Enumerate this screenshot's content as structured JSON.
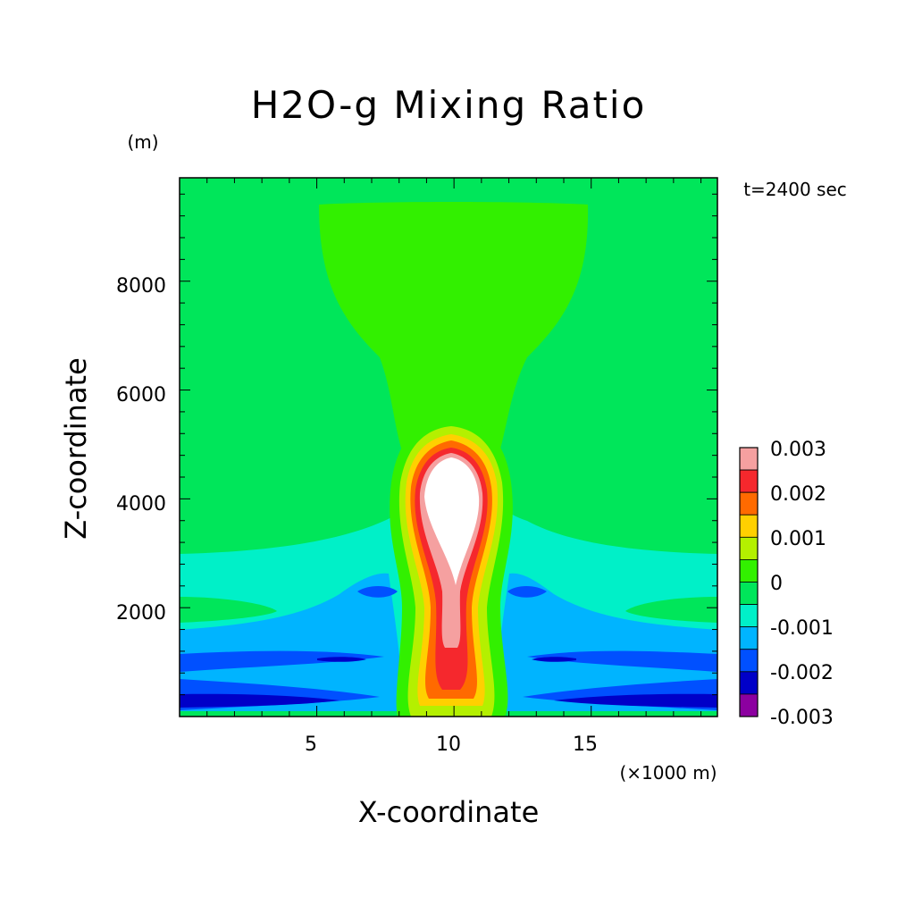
{
  "chart_data": {
    "type": "heatmap",
    "title": "H2O-g Mixing Ratio",
    "xlabel": "X-coordinate",
    "ylabel": "Z-coordinate",
    "x_unit": "(×1000 m)",
    "y_unit": "(m)",
    "time_label": "t=2400 sec",
    "xlim": [
      0,
      19.6
    ],
    "ylim": [
      0,
      9900
    ],
    "x_ticks": [
      "5",
      "10",
      "15"
    ],
    "y_ticks": [
      "2000",
      "4000",
      "6000",
      "8000"
    ],
    "grid": false,
    "legend_position": "right",
    "colorbar": {
      "labels": [
        "0.003",
        "0.002",
        "0.001",
        "0",
        "-0.001",
        "-0.002",
        "-0.003"
      ],
      "bands": [
        {
          "range": [
            0.0025,
            0.003
          ],
          "color": "#f5a0a0"
        },
        {
          "range": [
            0.002,
            0.0025
          ],
          "color": "#f5282d"
        },
        {
          "range": [
            0.0015,
            0.002
          ],
          "color": "#ff6a00"
        },
        {
          "range": [
            0.001,
            0.0015
          ],
          "color": "#ffd000"
        },
        {
          "range": [
            0.0005,
            0.001
          ],
          "color": "#b4f000"
        },
        {
          "range": [
            0,
            0.0005
          ],
          "color": "#32f000"
        },
        {
          "range": [
            -0.0005,
            0
          ],
          "color": "#00e65a"
        },
        {
          "range": [
            -0.001,
            -0.0005
          ],
          "color": "#00f0c8"
        },
        {
          "range": [
            -0.0015,
            -0.001
          ],
          "color": "#00b4ff"
        },
        {
          "range": [
            -0.002,
            -0.0015
          ],
          "color": "#0050ff"
        },
        {
          "range": [
            -0.0025,
            -0.002
          ],
          "color": "#0000c8"
        },
        {
          "range": [
            -0.003,
            -0.0025
          ],
          "color": "#8c00a0"
        }
      ]
    },
    "above_max_color": "#ffffff",
    "features": [
      {
        "name": "plume core",
        "x": 10.1,
        "z": 4100,
        "value": "> 0.003"
      },
      {
        "name": "plume stem",
        "x": 10.1,
        "z": 1500,
        "value": 0.0027
      },
      {
        "name": "upper plume",
        "x": 10.1,
        "z": 7500,
        "value": 0.0003
      },
      {
        "name": "low-level dry bands",
        "x": 3,
        "z": 500,
        "value": -0.0022
      }
    ]
  }
}
